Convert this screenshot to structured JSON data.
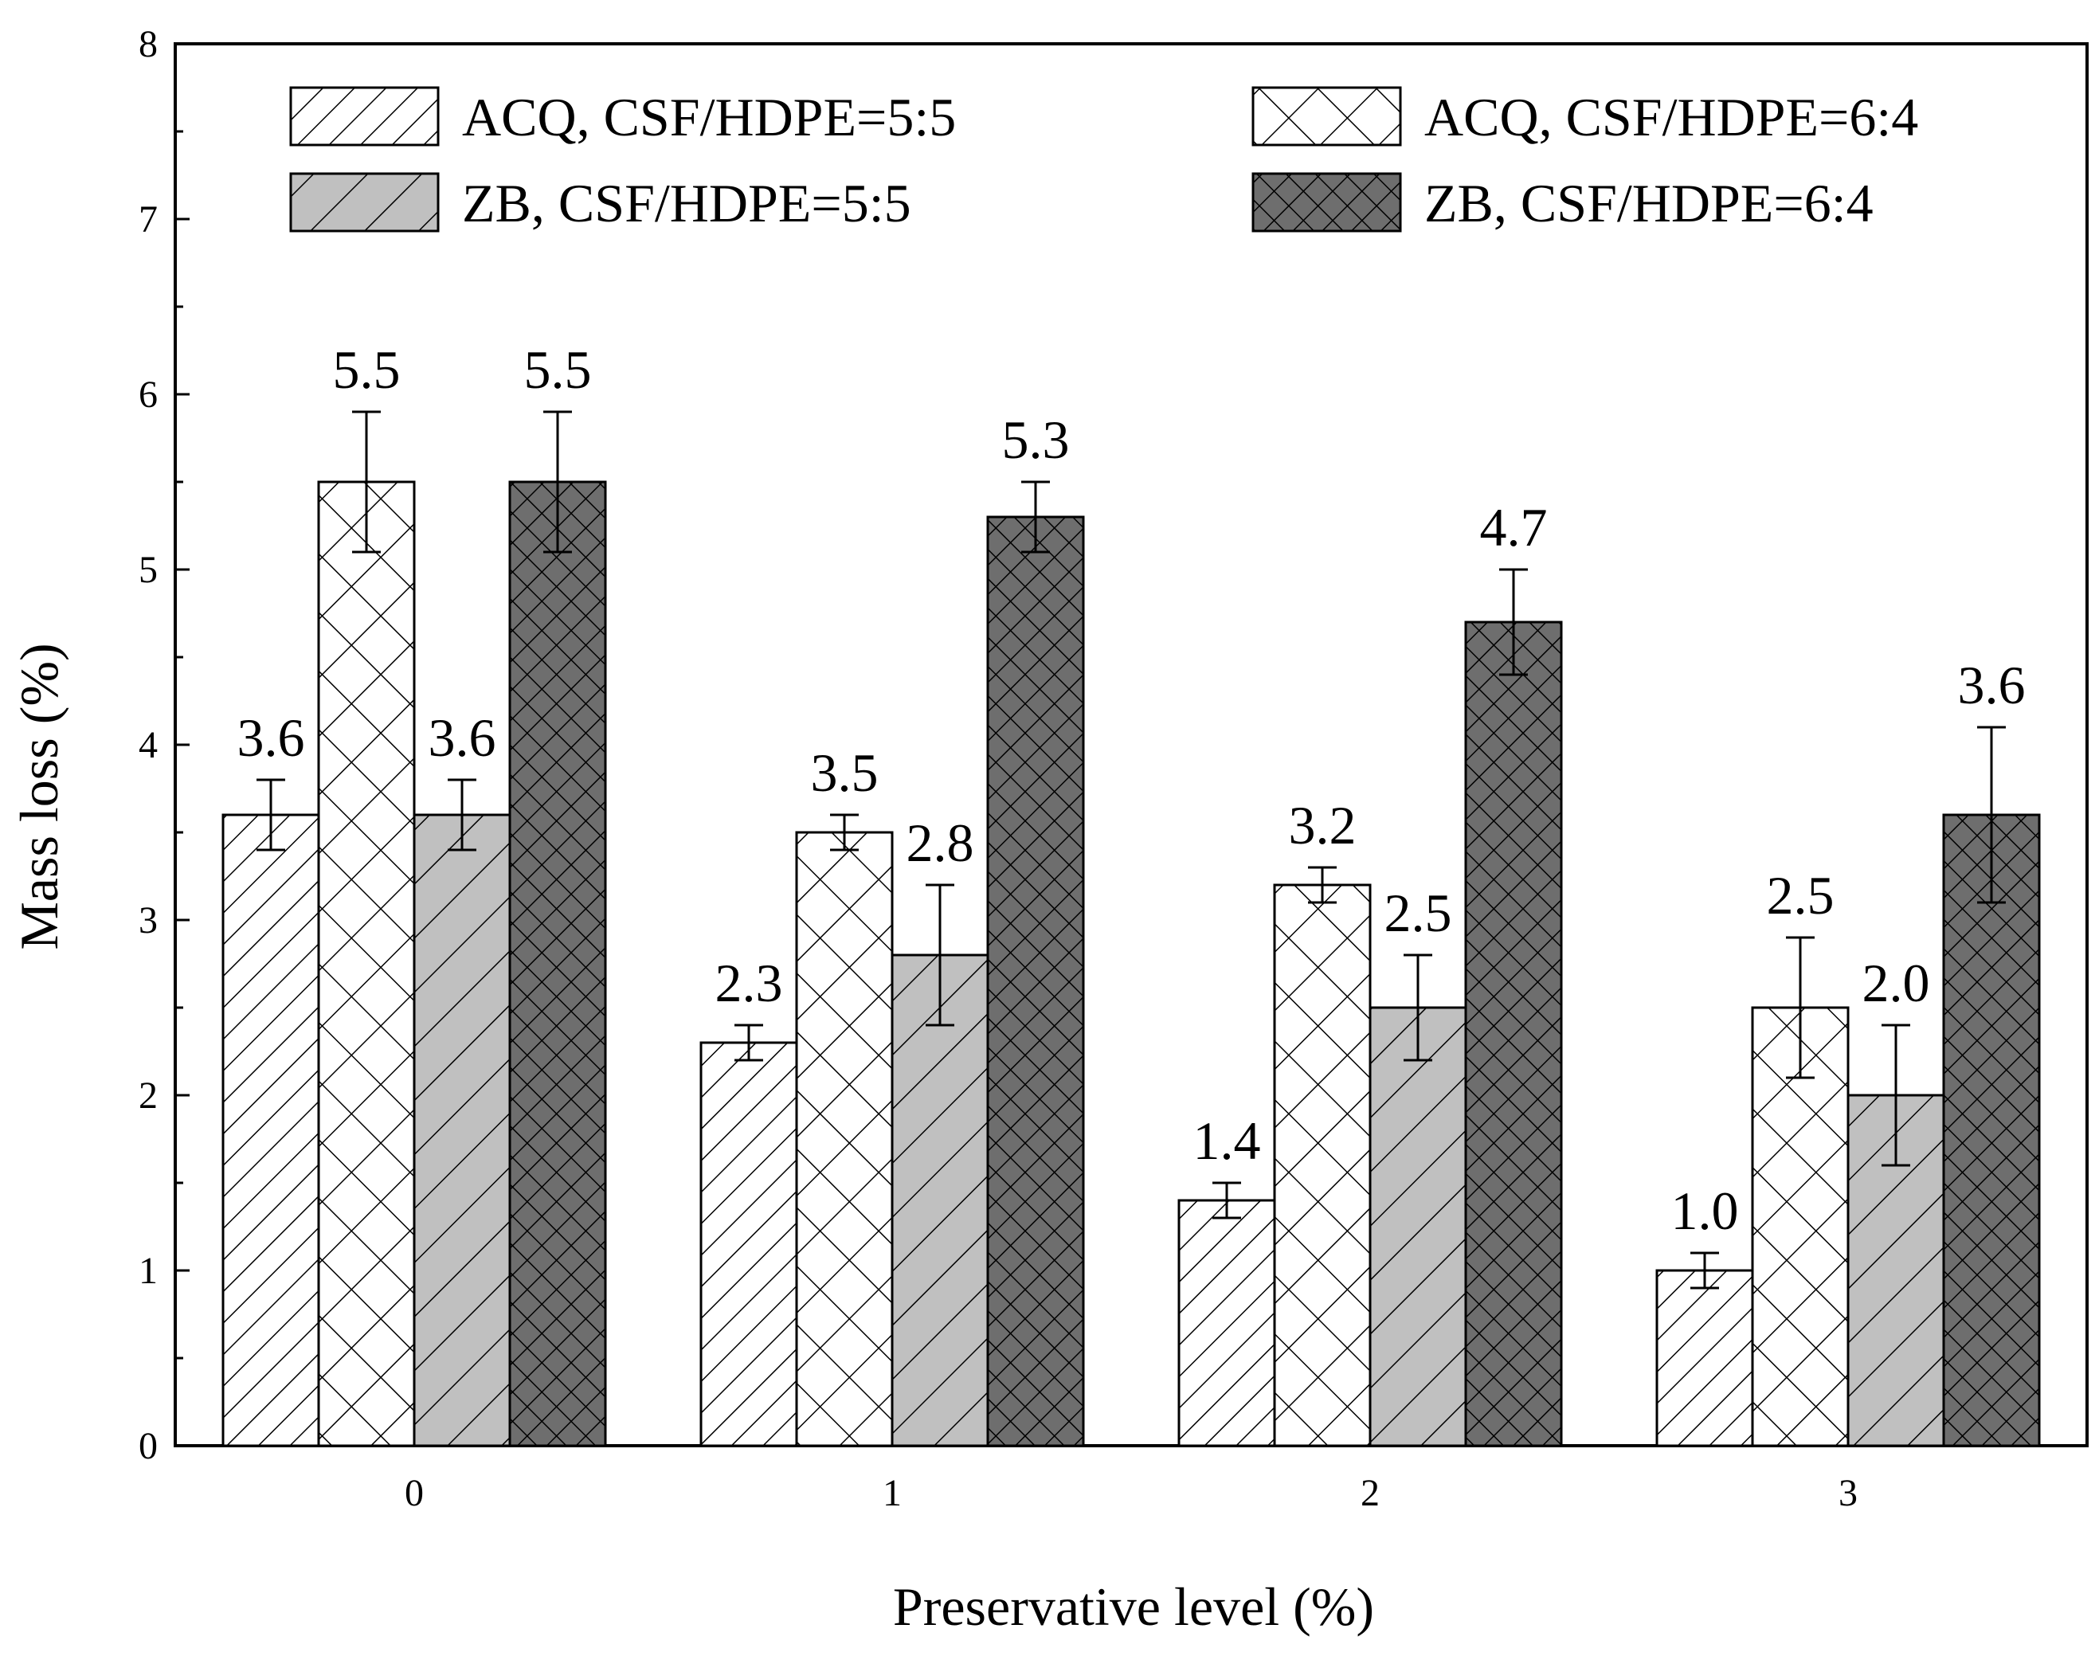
{
  "chart_data": {
    "type": "bar",
    "title": "",
    "xlabel": "Preservative level (%)",
    "ylabel": "Mass loss (%)",
    "ylim": [
      0,
      8
    ],
    "yticks": [
      "0",
      "1",
      "2",
      "3",
      "4",
      "5",
      "6",
      "7",
      "8"
    ],
    "categories": [
      "0",
      "1",
      "2",
      "3"
    ],
    "legend_position": "top",
    "series": [
      {
        "name": "ACQ, CSF/HDPE=5:5",
        "pattern": "sparse-diagonal",
        "fill": "#ffffff",
        "values": [
          3.6,
          2.3,
          1.4,
          1.0
        ],
        "errors": [
          0.2,
          0.1,
          0.1,
          0.1
        ],
        "labels": [
          "3.6",
          "2.3",
          "1.4",
          "1.0"
        ]
      },
      {
        "name": "ACQ, CSF/HDPE=6:4",
        "pattern": "crosshatch",
        "fill": "#ffffff",
        "values": [
          5.5,
          3.5,
          3.2,
          2.5
        ],
        "errors": [
          0.4,
          0.1,
          0.1,
          0.4
        ],
        "labels": [
          "5.5",
          "3.5",
          "3.2",
          "2.5"
        ]
      },
      {
        "name": "ZB, CSF/HDPE=5:5",
        "pattern": "wide-diagonal",
        "fill": "#c0c0c0",
        "values": [
          3.6,
          2.8,
          2.5,
          2.0
        ],
        "errors": [
          0.2,
          0.4,
          0.3,
          0.4
        ],
        "labels": [
          "3.6",
          "2.8",
          "2.5",
          "2.0"
        ]
      },
      {
        "name": "ZB, CSF/HDPE=6:4",
        "pattern": "dense-crosshatch",
        "fill": "#6e6e6e",
        "values": [
          5.5,
          5.3,
          4.7,
          3.6
        ],
        "errors": [
          0.4,
          0.2,
          0.3,
          0.5
        ],
        "labels": [
          "5.5",
          "5.3",
          "4.7",
          "3.6"
        ]
      }
    ]
  }
}
